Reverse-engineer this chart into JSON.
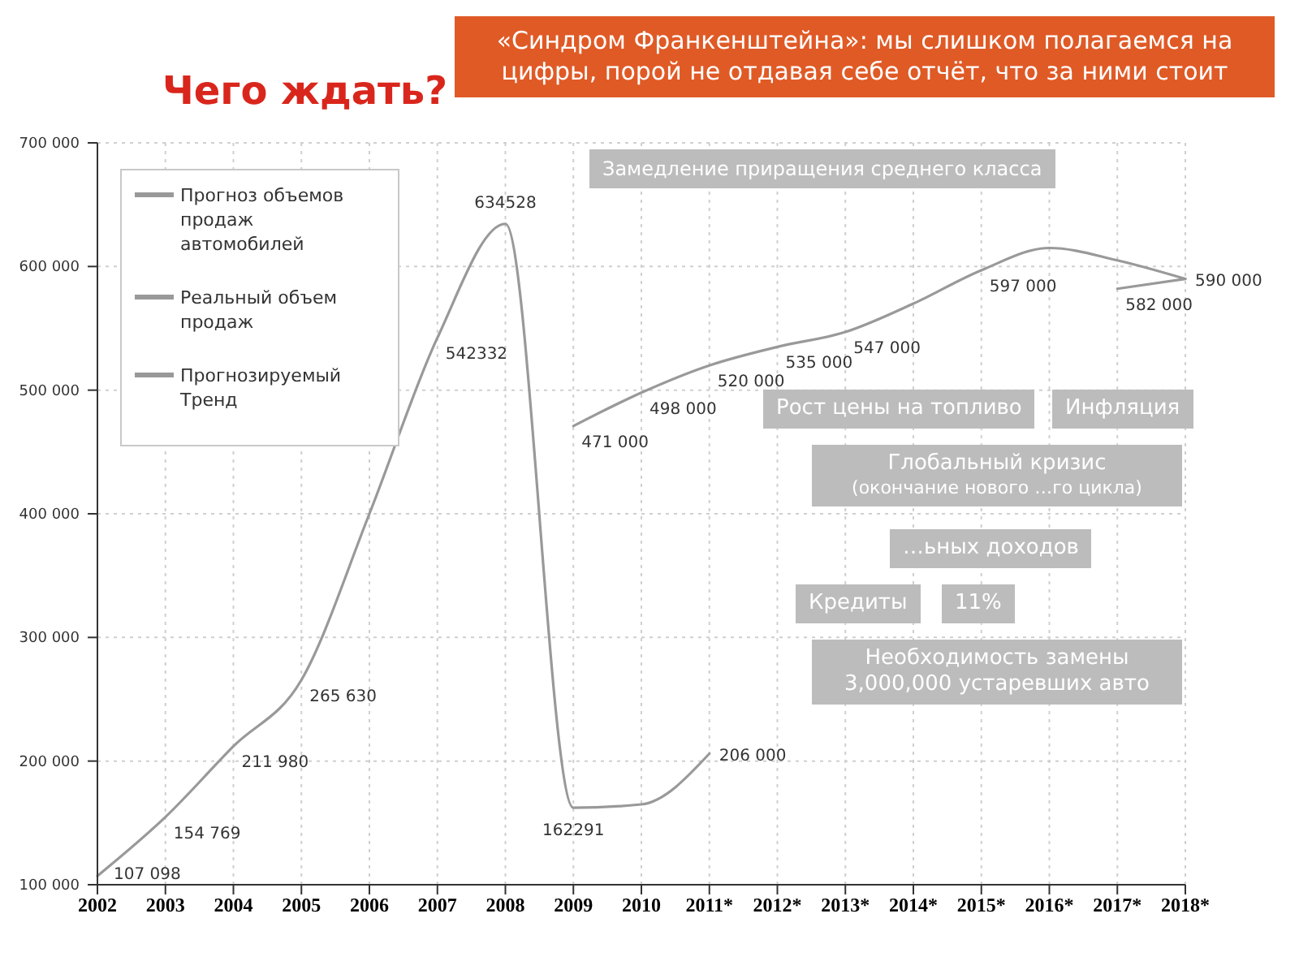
{
  "chart_data": {
    "type": "line",
    "title": "Чего ждать?",
    "categories": [
      "2002",
      "2003",
      "2004",
      "2005",
      "2006",
      "2007",
      "2008",
      "2009",
      "2010",
      "2011*",
      "2012*",
      "2013*",
      "2014*",
      "2015*",
      "2016*",
      "2017*",
      "2018*"
    ],
    "series": [
      {
        "name": "Прогноз объемов продаж автомобилей",
        "color": "#999999",
        "values": [
          null,
          null,
          null,
          null,
          null,
          null,
          null,
          471000,
          498000,
          520000,
          535000,
          547000,
          570000,
          597000,
          615000,
          605000,
          590000
        ],
        "value_labels": [
          null,
          null,
          null,
          null,
          null,
          null,
          null,
          "471 000",
          "498 000",
          "520 000",
          "535 000",
          "547 000",
          null,
          "597 000",
          null,
          null,
          "590 000"
        ]
      },
      {
        "name": "Реальный объем продаж",
        "color": "#999999",
        "values": [
          107098,
          154769,
          211980,
          265630,
          400000,
          542332,
          634528,
          162291,
          165000,
          206000,
          null,
          null,
          null,
          null,
          null,
          null,
          null
        ],
        "value_labels": [
          "107 098",
          "154 769",
          "211 980",
          "265 630",
          null,
          "542332",
          "634528",
          "162291",
          null,
          "206 000",
          null,
          null,
          null,
          null,
          null,
          null,
          null
        ]
      },
      {
        "name": "Прогнозируемый Тренд",
        "color": "#999999",
        "values": [
          null,
          null,
          null,
          null,
          null,
          null,
          null,
          null,
          null,
          null,
          null,
          null,
          null,
          null,
          null,
          582000,
          590000
        ],
        "value_labels": [
          null,
          null,
          null,
          null,
          null,
          null,
          null,
          null,
          null,
          null,
          null,
          null,
          null,
          null,
          null,
          "582 000",
          null
        ]
      }
    ],
    "ylim": [
      100000,
      700000
    ],
    "yticks": [
      {
        "value": 100000,
        "label": "100 000"
      },
      {
        "value": 200000,
        "label": "200 000"
      },
      {
        "value": 300000,
        "label": "300 000"
      },
      {
        "value": 400000,
        "label": "400 000"
      },
      {
        "value": 500000,
        "label": "500 000"
      },
      {
        "value": 600000,
        "label": "600 000"
      },
      {
        "value": 700000,
        "label": "700 000"
      }
    ],
    "grid": true,
    "legend": "top left",
    "annotations": [
      "«Синдром Франкенштейна»: мы слишком полагаемся на цифры, порой не отдавая себе отчёт, что за ними стоит",
      "Замедление приращения среднего класса",
      "Рост цены на топливо",
      "Инфляция",
      "Глобальный кризис",
      "(окончание нового …го цикла)",
      "…ьных доходов",
      "Кредиты",
      "11%",
      "Необходимость замены 3,000,000 устаревших авто"
    ]
  }
}
